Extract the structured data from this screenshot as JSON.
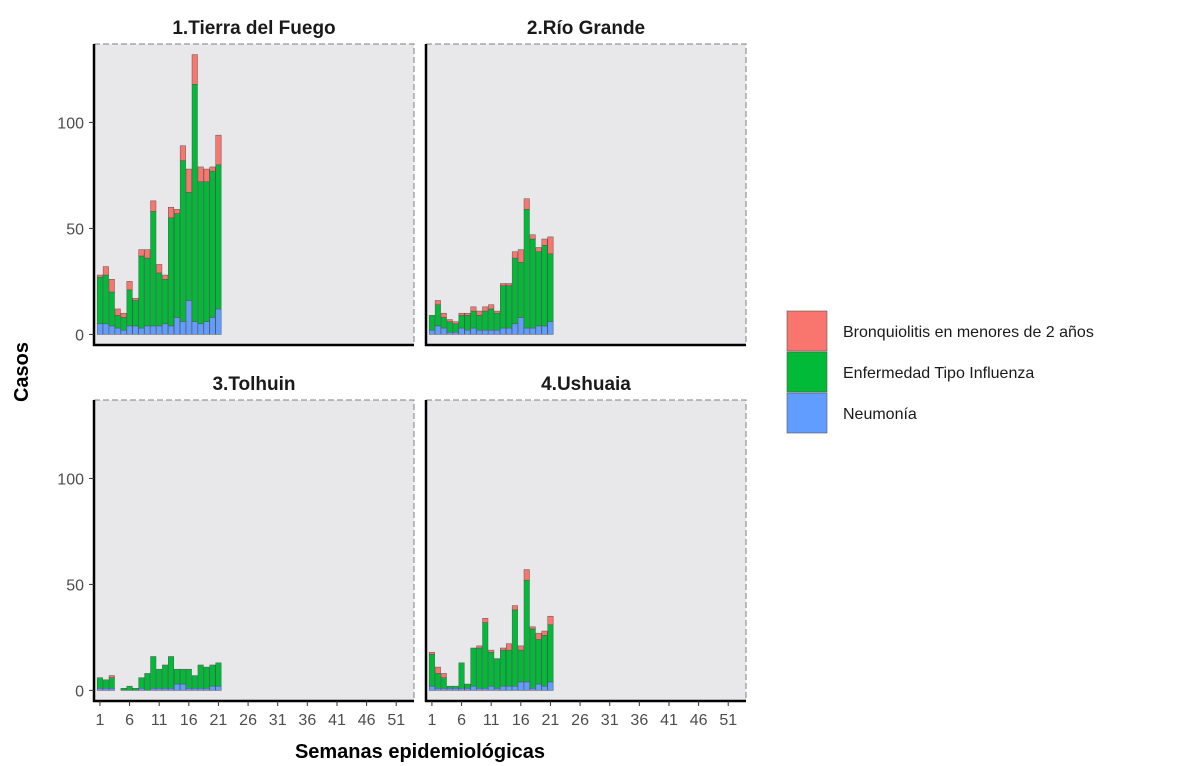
{
  "chart_data": {
    "type": "bar",
    "stacked": true,
    "facet_layout": "2x2",
    "xlabel": "Semanas epidemiológicas",
    "ylabel": "Casos",
    "xlim": [
      0,
      54
    ],
    "ylim": [
      -5,
      137
    ],
    "x_ticks": [
      1,
      6,
      11,
      16,
      21,
      26,
      31,
      36,
      41,
      46,
      51
    ],
    "y_ticks": [
      0,
      50,
      100
    ],
    "legend_position": "right",
    "series": [
      {
        "key": "neumonia",
        "name": "Neumonía",
        "color": "#619CFF"
      },
      {
        "key": "eti",
        "name": "Enfermedad Tipo Influenza",
        "color": "#00BA38"
      },
      {
        "key": "bronq",
        "name": "Bronquiolitis en menores de 2 años",
        "color": "#F8766D"
      }
    ],
    "legend_order": [
      "bronq",
      "eti",
      "neumonia"
    ],
    "panels": [
      {
        "title": "1.Tierra del Fuego",
        "x": [
          1,
          2,
          3,
          4,
          5,
          6,
          7,
          8,
          9,
          10,
          11,
          12,
          13,
          14,
          15,
          16,
          17,
          18,
          19,
          20,
          21
        ],
        "neumonia": [
          5,
          5,
          4,
          3,
          2,
          4,
          4,
          3,
          4,
          4,
          4,
          5,
          4,
          8,
          6,
          16,
          6,
          5,
          6,
          8,
          12
        ],
        "eti": [
          22,
          23,
          16,
          6,
          6,
          17,
          12,
          34,
          32,
          54,
          25,
          21,
          51,
          49,
          76,
          51,
          112,
          67,
          66,
          69,
          68
        ],
        "bronq": [
          1,
          4,
          6,
          3,
          2,
          4,
          1,
          3,
          4,
          5,
          4,
          2,
          5,
          2,
          7,
          11,
          14,
          7,
          6,
          2,
          14
        ]
      },
      {
        "title": "2.Río Grande",
        "x": [
          1,
          2,
          3,
          4,
          5,
          6,
          7,
          8,
          9,
          10,
          11,
          12,
          13,
          14,
          15,
          16,
          17,
          18,
          19,
          20,
          21
        ],
        "neumonia": [
          2,
          4,
          3,
          1,
          1,
          3,
          2,
          3,
          2,
          2,
          2,
          2,
          3,
          3,
          5,
          8,
          3,
          3,
          4,
          4,
          6
        ],
        "eti": [
          7,
          10,
          5,
          5,
          4,
          6,
          7,
          8,
          7,
          9,
          10,
          8,
          20,
          20,
          31,
          26,
          56,
          42,
          35,
          38,
          32
        ],
        "bronq": [
          0,
          2,
          2,
          1,
          1,
          1,
          1,
          2,
          2,
          2,
          2,
          1,
          1,
          1,
          3,
          6,
          5,
          2,
          2,
          3,
          8
        ]
      },
      {
        "title": "3.Tolhuin",
        "x": [
          1,
          2,
          3,
          4,
          5,
          6,
          7,
          8,
          9,
          10,
          11,
          12,
          13,
          14,
          15,
          16,
          17,
          18,
          19,
          20,
          21
        ],
        "neumonia": [
          1,
          1,
          1,
          0,
          0,
          0,
          0,
          1,
          0,
          1,
          1,
          1,
          1,
          3,
          3,
          1,
          1,
          1,
          1,
          2,
          2
        ],
        "eti": [
          5,
          4,
          5,
          0,
          1,
          2,
          1,
          5,
          8,
          15,
          9,
          11,
          15,
          7,
          7,
          9,
          6,
          11,
          10,
          10,
          11
        ],
        "bronq": [
          0,
          0,
          1,
          0,
          0,
          0,
          0,
          0,
          0,
          0,
          0,
          0,
          0,
          0,
          0,
          0,
          0,
          0,
          0,
          0,
          0
        ]
      },
      {
        "title": "4.Ushuaia",
        "x": [
          1,
          2,
          3,
          4,
          5,
          6,
          7,
          8,
          9,
          10,
          11,
          12,
          13,
          14,
          15,
          16,
          17,
          18,
          19,
          20,
          21
        ],
        "neumonia": [
          2,
          1,
          1,
          1,
          1,
          1,
          1,
          2,
          1,
          1,
          2,
          1,
          2,
          2,
          2,
          4,
          4,
          1,
          3,
          2,
          4
        ],
        "eti": [
          15,
          7,
          5,
          1,
          1,
          12,
          2,
          18,
          19,
          31,
          16,
          14,
          17,
          17,
          36,
          15,
          48,
          28,
          21,
          24,
          27
        ],
        "bronq": [
          1,
          3,
          2,
          0,
          0,
          0,
          0,
          0,
          1,
          2,
          1,
          0,
          1,
          3,
          2,
          2,
          5,
          1,
          3,
          2,
          4
        ]
      }
    ]
  }
}
